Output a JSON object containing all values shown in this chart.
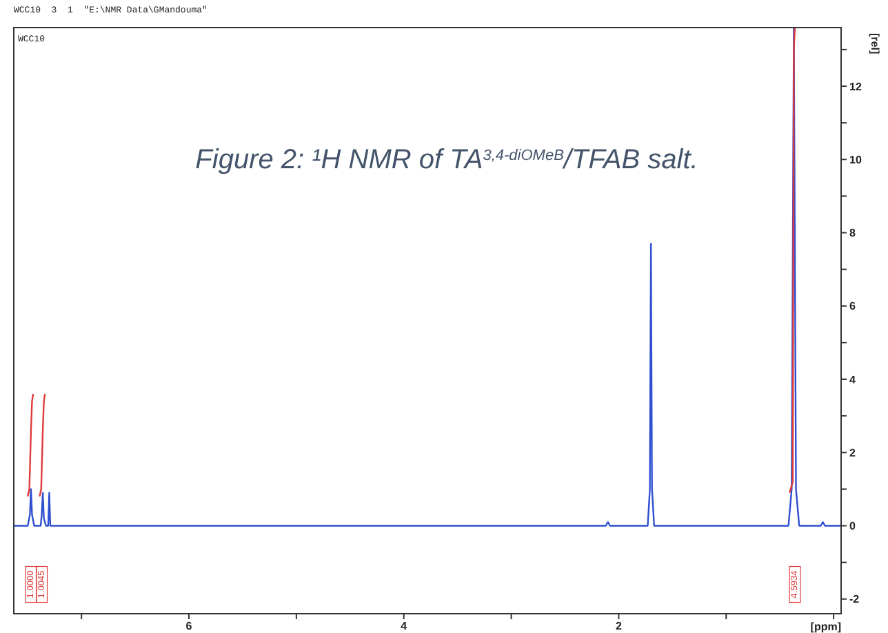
{
  "chart_data": {
    "type": "line",
    "title": "Figure 2: ¹H NMR of TA$^{3,4-diOMeB}$/TFAB salt.",
    "xlabel": "[ppm]",
    "ylabel": "[rel]",
    "annotations": [
      "WCC10  3  1  \"E:\\NMR Data\\GMandouma\"",
      "WCC10",
      {
        "text": "1.0000",
        "x": 7.47,
        "y": -1.6
      },
      {
        "text": "1.0045",
        "x": 7.37,
        "y": -1.6
      },
      {
        "text": "4.5934",
        "x": 0.36,
        "y": -1.6
      }
    ],
    "xlim": [
      7.63,
      -0.07
    ],
    "xticks": [
      {
        "value": 7,
        "label": null
      },
      6,
      {
        "value": 5,
        "label": null
      },
      4,
      {
        "value": 3,
        "label": null
      },
      2,
      {
        "value": 1,
        "label": null
      },
      {
        "value": 0,
        "label": null
      }
    ],
    "ylim": [
      -2.4,
      13.6
    ],
    "yticks": [
      -2,
      {
        "value": -1,
        "label": null
      },
      0,
      {
        "value": 1,
        "label": null
      },
      2,
      {
        "value": 3,
        "label": null
      },
      4,
      {
        "value": 5,
        "label": null
      },
      6,
      {
        "value": 7,
        "label": null
      },
      8,
      {
        "value": 9,
        "label": null
      },
      10,
      {
        "value": 11,
        "label": null
      },
      12,
      {
        "value": 13,
        "label": null
      }
    ],
    "marker": "none",
    "line_style": "solid",
    "series": [
      {
        "color": "#2f4fd0",
        "x": [
          7.63,
          7.5,
          7.48,
          7.47,
          7.46,
          7.44,
          7.38,
          7.37,
          7.36,
          7.35,
          7.33,
          7.31,
          7.3,
          7.29,
          5.0,
          2.12,
          2.1,
          2.08,
          1.73,
          1.71,
          1.7,
          1.69,
          1.67,
          0.42,
          0.39,
          0.37,
          0.35,
          0.32,
          0.12,
          0.1,
          0.08,
          -0.07
        ],
        "values": [
          0,
          0,
          0.3,
          1.0,
          0.3,
          0,
          0,
          0.3,
          0.9,
          0.2,
          0,
          0,
          0.9,
          0,
          0,
          0,
          0.1,
          0,
          0,
          1.0,
          7.7,
          1.0,
          0,
          0,
          1.0,
          13.6,
          1.0,
          0,
          0,
          0.1,
          0,
          0
        ]
      },
      {
        "color": "#e03a3a",
        "x": [
          7.5,
          7.485,
          7.47,
          7.46,
          7.45
        ],
        "values": [
          0.8,
          1.0,
          2.6,
          3.4,
          3.6
        ]
      },
      {
        "color": "#e03a3a",
        "x": [
          7.39,
          7.375,
          7.36,
          7.35,
          7.34
        ],
        "values": [
          0.8,
          1.0,
          2.6,
          3.4,
          3.6
        ]
      },
      {
        "color": "#e03a3a",
        "x": [
          0.41,
          0.38,
          0.37,
          0.36
        ],
        "values": [
          0.9,
          1.2,
          13.0,
          13.6
        ]
      }
    ]
  }
}
